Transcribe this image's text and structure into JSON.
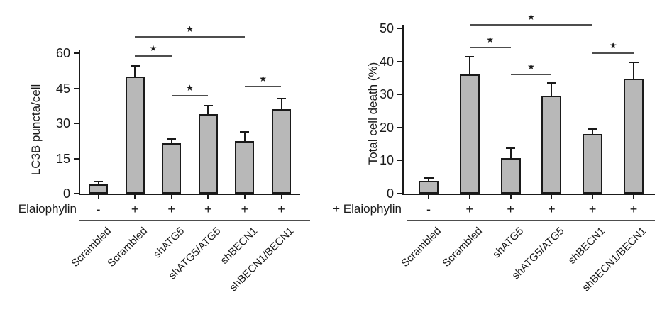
{
  "figure": {
    "background": "#ffffff",
    "text_color": "#1a1a1a",
    "bar_fill": "#b8b8b8",
    "bar_border": "#1a1a1a",
    "axis_color": "#1a1a1a",
    "sig_line_color": "#4d4d4d",
    "sig_marker": "★"
  },
  "chart_data": [
    {
      "type": "bar",
      "title": "",
      "ylabel": "LC3B puncta/cell",
      "xlabel": "",
      "ylim": [
        0,
        60
      ],
      "yticks": [
        0,
        15,
        30,
        45,
        60
      ],
      "grid": false,
      "legend": null,
      "treatment_row": {
        "label": "Elaiophylin",
        "signs": [
          "-",
          "+",
          "+",
          "+",
          "+",
          "+"
        ]
      },
      "categories": [
        "Scrambled",
        "Scrambled",
        "shATG5",
        "shATG5/ATG5",
        "shBECN1",
        "shBECN1/BECN1"
      ],
      "values": [
        4,
        50,
        21.5,
        34,
        22.5,
        36
      ],
      "errors_plus": [
        1.3,
        4.5,
        1.8,
        3.5,
        3.8,
        4.5
      ],
      "significance": [
        {
          "bars": [
            2,
            3
          ],
          "line_y": 58.8,
          "marker": "★"
        },
        {
          "bars": [
            2,
            5
          ],
          "line_y": 67.0,
          "marker": "★"
        },
        {
          "bars": [
            3,
            4
          ],
          "line_y": 41.8,
          "marker": "★"
        },
        {
          "bars": [
            5,
            6
          ],
          "line_y": 45.8,
          "marker": "★"
        }
      ]
    },
    {
      "type": "bar",
      "title": "",
      "ylabel": "Total cell death (%)",
      "xlabel": "",
      "ylim": [
        0,
        50
      ],
      "yticks": [
        0,
        10,
        20,
        30,
        40,
        50
      ],
      "grid": false,
      "legend": null,
      "treatment_row": {
        "label": "+ Elaiophylin",
        "signs": [
          "-",
          "+",
          "+",
          "+",
          "+",
          "+"
        ]
      },
      "categories": [
        "Scrambled",
        "Scrambled",
        "shATG5",
        "shATG5/ATG5",
        "shBECN1",
        "shBECN1/BECN1"
      ],
      "values": [
        3.8,
        36,
        10.7,
        29.7,
        18,
        34.7
      ],
      "errors_plus": [
        0.9,
        5.5,
        3.0,
        3.8,
        1.6,
        5.0
      ],
      "significance": [
        {
          "bars": [
            2,
            3
          ],
          "line_y": 44.2,
          "marker": "★"
        },
        {
          "bars": [
            2,
            5
          ],
          "line_y": 51.1,
          "marker": "★"
        },
        {
          "bars": [
            3,
            4
          ],
          "line_y": 36.0,
          "marker": "★"
        },
        {
          "bars": [
            5,
            6
          ],
          "line_y": 42.5,
          "marker": "★"
        }
      ]
    }
  ]
}
